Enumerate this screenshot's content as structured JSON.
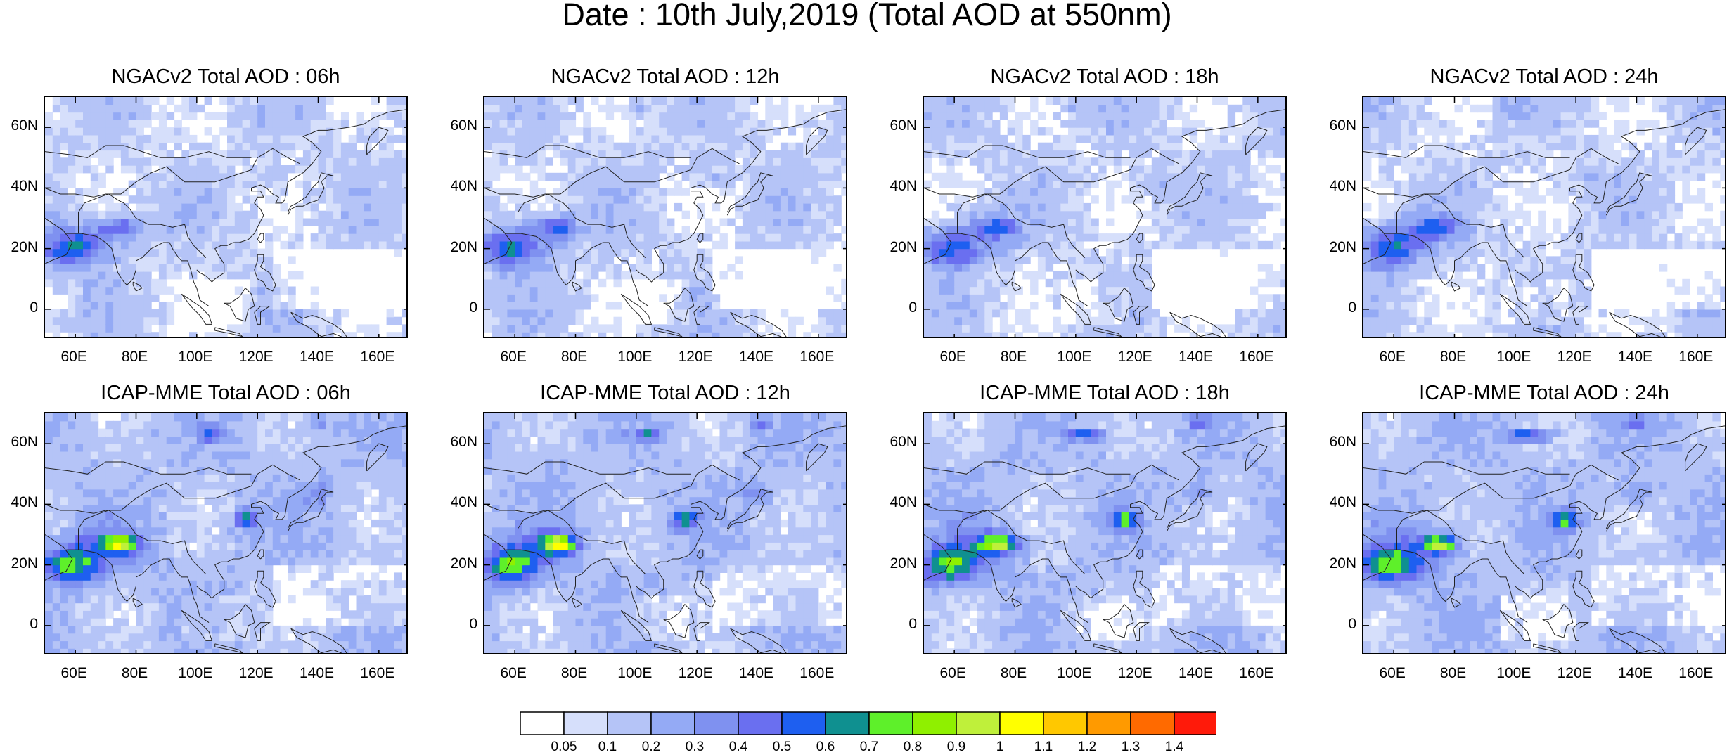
{
  "title": "Date : 10th July,2019 (Total AOD at 550nm)",
  "panels": [
    {
      "title": "NGACv2 Total AOD : 06h",
      "model": "NGACv2",
      "lead": "06h"
    },
    {
      "title": "NGACv2 Total AOD : 12h",
      "model": "NGACv2",
      "lead": "12h"
    },
    {
      "title": "NGACv2 Total AOD : 18h",
      "model": "NGACv2",
      "lead": "18h"
    },
    {
      "title": "NGACv2 Total AOD : 24h",
      "model": "NGACv2",
      "lead": "24h"
    },
    {
      "title": "ICAP-MME Total AOD : 06h",
      "model": "ICAP-MME",
      "lead": "06h"
    },
    {
      "title": "ICAP-MME Total AOD : 12h",
      "model": "ICAP-MME",
      "lead": "12h"
    },
    {
      "title": "ICAP-MME Total AOD : 18h",
      "model": "ICAP-MME",
      "lead": "18h"
    },
    {
      "title": "ICAP-MME Total AOD : 24h",
      "model": "ICAP-MME",
      "lead": "24h"
    }
  ],
  "axes": {
    "lon_range": [
      50,
      170
    ],
    "lat_range": [
      -10,
      70
    ],
    "lon_ticks": [
      "60E",
      "80E",
      "100E",
      "120E",
      "140E",
      "160E"
    ],
    "lon_values": [
      60,
      80,
      100,
      120,
      140,
      160
    ],
    "lat_ticks": [
      "0",
      "20N",
      "40N",
      "60N"
    ],
    "lat_values": [
      0,
      20,
      40,
      60
    ]
  },
  "colorbar": {
    "labels": [
      "0.05",
      "0.1",
      "0.2",
      "0.3",
      "0.4",
      "0.5",
      "0.6",
      "0.7",
      "0.8",
      "0.9",
      "1",
      "1.1",
      "1.2",
      "1.3",
      "1.4"
    ],
    "colors": [
      "#ffffff",
      "#d6dffb",
      "#b5c4f7",
      "#94aaf5",
      "#7f91f0",
      "#6a6ff0",
      "#1e5ff0",
      "#0f9090",
      "#5ef02a",
      "#8ff000",
      "#bff03a",
      "#ffff00",
      "#ffc800",
      "#ff9a00",
      "#ff6a00",
      "#ff1a0a"
    ]
  }
}
